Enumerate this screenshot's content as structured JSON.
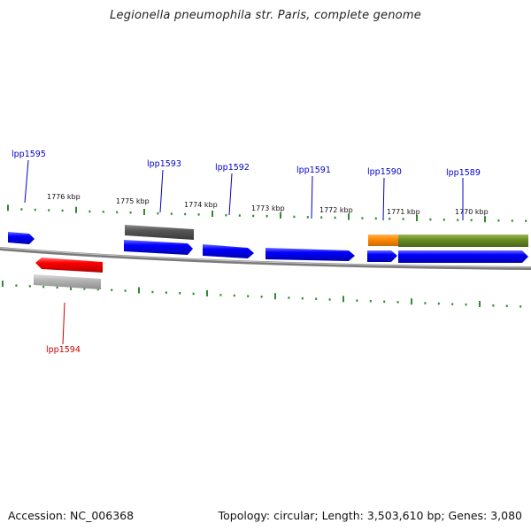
{
  "title": "Legionella pneumophila str. Paris, complete genome",
  "footer": {
    "accession": "Accession: NC_006368",
    "summary": "Topology: circular; Length: 3,503,610 bp; Genes: 3,080"
  },
  "colors": {
    "forward_gene": "#0000ff",
    "reverse_gene": "#ff0000",
    "label_forward": "#0000cc",
    "label_reverse": "#cc0000",
    "tick": "#2e8b2e",
    "backbone": "#888888",
    "pseudo_gray": "#666666",
    "pseudo_light": "#b8b8b8",
    "orange": "#ff8c00",
    "olive": "#6b8e23"
  },
  "kbp_labels": [
    "1776 kbp",
    "1775 kbp",
    "1774 kbp",
    "1773 kbp",
    "1772 kbp",
    "1771 kbp",
    "1770 kbp"
  ],
  "genes": [
    {
      "id": "lpp1595",
      "label": "lpp1595",
      "strand": "+"
    },
    {
      "id": "lpp1594",
      "label": "lpp1594",
      "strand": "-"
    },
    {
      "id": "lpp1593",
      "label": "lpp1593",
      "strand": "+"
    },
    {
      "id": "lpp1592",
      "label": "lpp1592",
      "strand": "+"
    },
    {
      "id": "lpp1591",
      "label": "lpp1591",
      "strand": "+"
    },
    {
      "id": "lpp1590",
      "label": "lpp1590",
      "strand": "+"
    },
    {
      "id": "lpp1589",
      "label": "lpp1589",
      "strand": "+"
    }
  ]
}
